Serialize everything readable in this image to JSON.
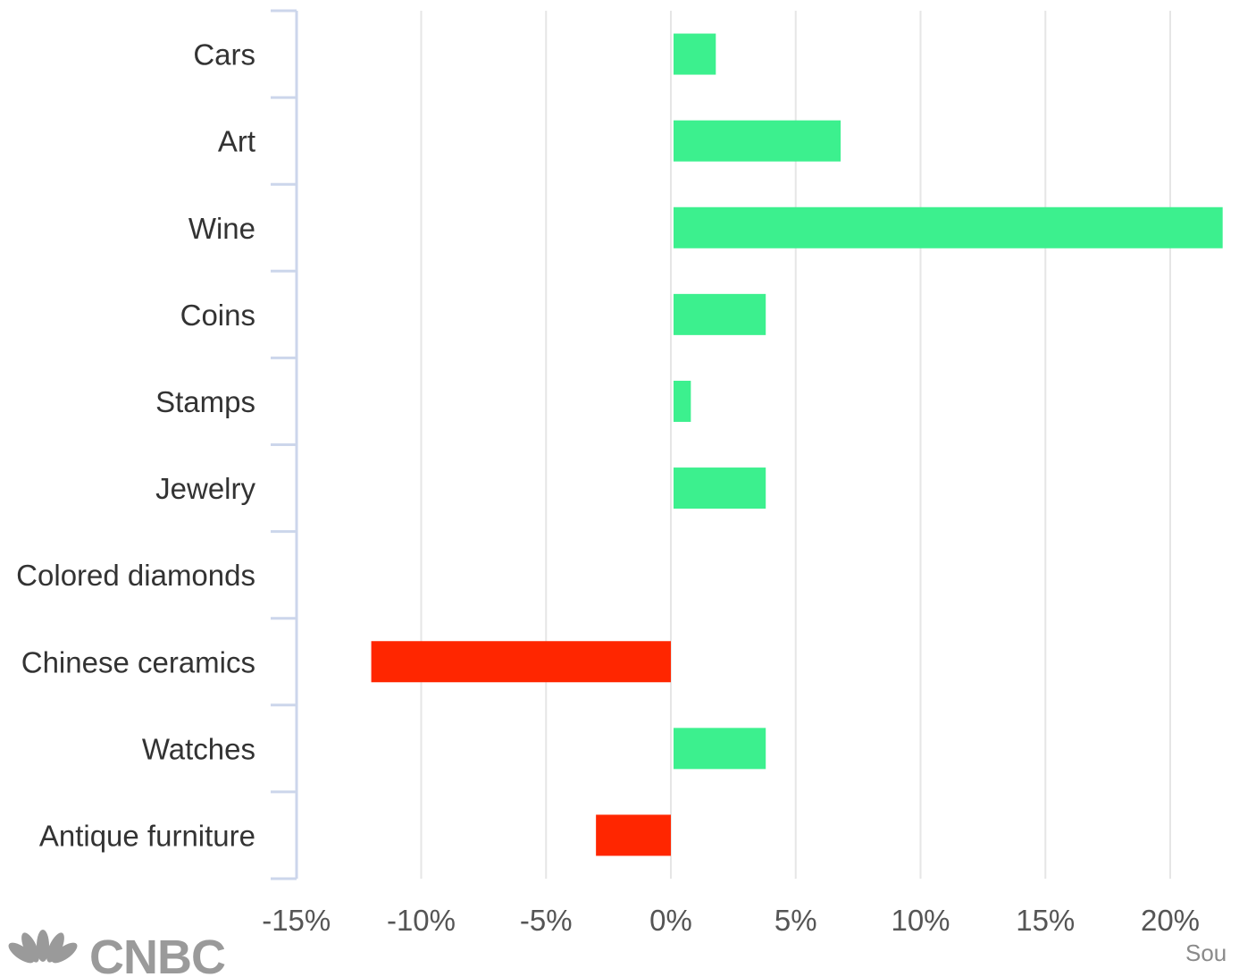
{
  "chart_data": {
    "type": "bar",
    "orientation": "horizontal",
    "categories": [
      "Cars",
      "Art",
      "Wine",
      "Coins",
      "Stamps",
      "Jewelry",
      "Colored diamonds",
      "Chinese ceramics",
      "Watches",
      "Antique furniture"
    ],
    "values": [
      1.8,
      6.8,
      22.1,
      3.8,
      0.8,
      3.8,
      0,
      -12,
      3.8,
      -3
    ],
    "x_ticks": [
      "-15%",
      "-10%",
      "-5%",
      "0%",
      "5%",
      "10%",
      "15%",
      "20%"
    ],
    "x_tick_values": [
      -15,
      -10,
      -5,
      0,
      5,
      10,
      15,
      20
    ],
    "xlim": [
      -15,
      22.1
    ],
    "grid": "vertical",
    "colors": {
      "positive": "#3cf08e",
      "negative": "#ff2600",
      "grid": "#e6e6e6",
      "axis": "#ccd6eb"
    }
  },
  "branding": {
    "logo_text": "CNBC",
    "source_text": "Sou"
  }
}
